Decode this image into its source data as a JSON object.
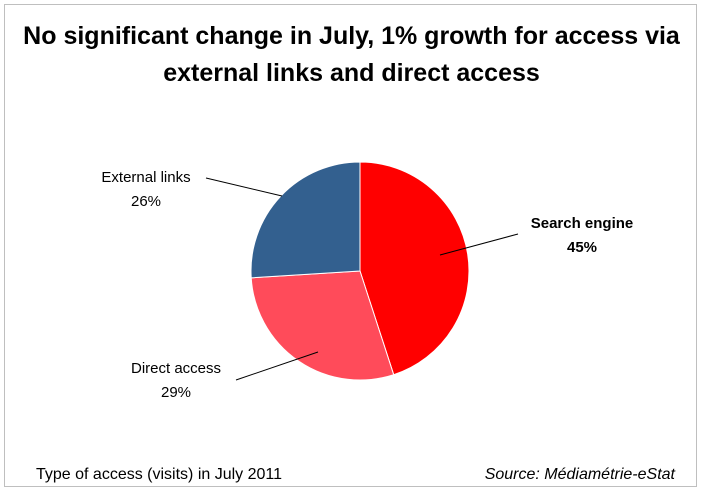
{
  "chart_data": {
    "type": "pie",
    "title_lines": [
      "No significant change in July, 1% growth for access via",
      "external links and direct access"
    ],
    "slices": [
      {
        "name": "Search engine",
        "value": 45,
        "label": "45%",
        "color": "#ff0000",
        "bold": true
      },
      {
        "name": "Direct access",
        "value": 29,
        "label": "29%",
        "color": "#ff4b5a",
        "bold": false
      },
      {
        "name": "External links",
        "value": 26,
        "label": "26%",
        "color": "#33608f",
        "bold": false
      }
    ]
  },
  "footer": {
    "left": "Type of access (visits) in July 2011",
    "right": "Source: Médiamétrie-eStat"
  }
}
